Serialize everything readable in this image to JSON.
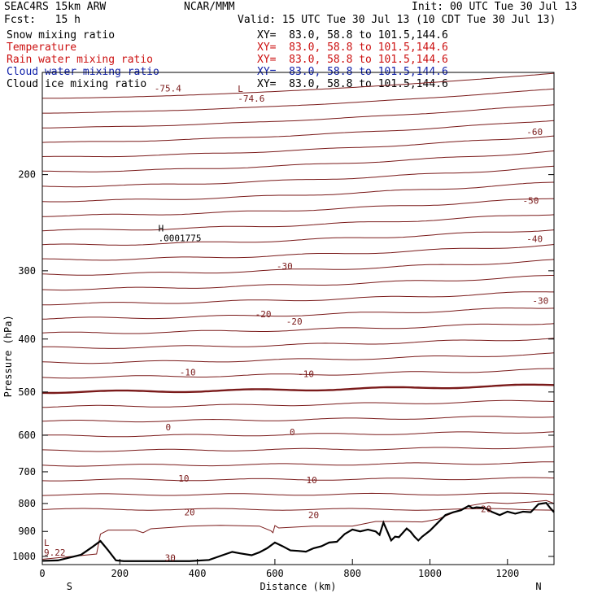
{
  "header": {
    "model": "SEAC4RS 15km ARW",
    "center": "NCAR/MMM",
    "init": "Init: 00 UTC Tue 30 Jul 13",
    "fcst": "Fcst:   15 h",
    "valid": "Valid: 15 UTC Tue 30 Jul 13 (10 CDT Tue 30 Jul 13)"
  },
  "fields": [
    {
      "name": "Snow mixing ratio",
      "xy": "XY=  83.0, 58.8 to 101.5,144.6",
      "color": "#000000"
    },
    {
      "name": "Temperature",
      "xy": "XY=  83.0, 58.8 to 101.5,144.6",
      "color": "#cc1111"
    },
    {
      "name": "Rain water mixing ratio",
      "xy": "XY=  83.0, 58.8 to 101.5,144.6",
      "color": "#cc1111"
    },
    {
      "name": "Cloud water mixing ratio",
      "xy": "XY=  83.0, 58.8 to 101.5,144.6",
      "color": "#1122aa"
    },
    {
      "name": "Cloud ice mixing ratio",
      "xy": "XY=  83.0, 58.8 to 101.5,144.6",
      "color": "#000000"
    }
  ],
  "chart_data": {
    "type": "line",
    "xlabel": "Distance (km)",
    "ylabel": "Pressure (hPa)",
    "xlim": [
      0,
      1320
    ],
    "ylim": [
      1035,
      130
    ],
    "x_ticks": [
      0,
      200,
      400,
      600,
      800,
      1000,
      1200
    ],
    "y_ticks": [
      200,
      300,
      400,
      500,
      600,
      700,
      800,
      900,
      1000
    ],
    "x_end_labels": {
      "left": "S",
      "right": "N"
    },
    "temperature_color": "#7a1a1a",
    "isotherm_interval": 2.5,
    "isotherm_labels": [
      {
        "value": "-60",
        "x": 1270,
        "p": 167
      },
      {
        "value": "-50",
        "x": 1260,
        "p": 223
      },
      {
        "value": "-40",
        "x": 1270,
        "p": 262
      },
      {
        "value": "-30",
        "x": 625,
        "p": 294
      },
      {
        "value": "-30",
        "x": 1285,
        "p": 340
      },
      {
        "value": "-20",
        "x": 570,
        "p": 360
      },
      {
        "value": "-20",
        "x": 650,
        "p": 371
      },
      {
        "value": "-10",
        "x": 375,
        "p": 460
      },
      {
        "value": "-10",
        "x": 680,
        "p": 463
      },
      {
        "value": "0",
        "x": 325,
        "p": 580
      },
      {
        "value": "0",
        "x": 645,
        "p": 592
      },
      {
        "value": "10",
        "x": 365,
        "p": 720
      },
      {
        "value": "10",
        "x": 695,
        "p": 725
      },
      {
        "value": "20",
        "x": 380,
        "p": 830
      },
      {
        "value": "20",
        "x": 700,
        "p": 840
      },
      {
        "value": "20",
        "x": 1145,
        "p": 818
      },
      {
        "value": "30",
        "x": 330,
        "p": 1006
      }
    ],
    "extrema": [
      {
        "label": "L",
        "value": "-74.6",
        "x": 500,
        "p": 146,
        "color": "#7a1a1a"
      },
      {
        "label": "",
        "value": "-75.4",
        "x": 285,
        "p": 140,
        "color": "#7a1a1a"
      },
      {
        "label": "H",
        "value": ".0001775",
        "x": 295,
        "p": 263,
        "color": "#000000"
      },
      {
        "label": "L",
        "value": "9.22",
        "x": 0,
        "p": 990,
        "color": "#7a1a1a"
      }
    ],
    "terrain": {
      "x": [
        0,
        40,
        70,
        100,
        130,
        150,
        170,
        190,
        210,
        260,
        320,
        380,
        430,
        470,
        490,
        510,
        540,
        560,
        580,
        600,
        620,
        640,
        660,
        680,
        700,
        720,
        740,
        760,
        780,
        800,
        820,
        840,
        860,
        870,
        880,
        890,
        900,
        910,
        920,
        940,
        950,
        960,
        970,
        980,
        1000,
        1020,
        1040,
        1060,
        1080,
        1100,
        1110,
        1120,
        1140,
        1160,
        1180,
        1200,
        1220,
        1240,
        1260,
        1280,
        1300,
        1310,
        1320
      ],
      "p": [
        1019,
        1017,
        1005,
        993,
        960,
        937,
        975,
        1017,
        1020,
        1020,
        1020,
        1020,
        1015,
        992,
        981,
        987,
        995,
        983,
        966,
        943,
        958,
        975,
        977,
        980,
        966,
        958,
        943,
        940,
        910,
        893,
        900,
        893,
        900,
        913,
        867,
        900,
        935,
        920,
        922,
        889,
        901,
        920,
        935,
        920,
        897,
        868,
        840,
        830,
        823,
        808,
        816,
        813,
        815,
        829,
        840,
        828,
        835,
        828,
        830,
        802,
        798,
        815,
        830
      ]
    },
    "cloud_top": {
      "x": [
        0,
        140,
        150,
        170,
        240,
        260,
        280,
        380,
        460,
        560,
        590,
        595,
        600,
        610,
        700,
        800,
        860,
        920,
        980,
        1020,
        1060,
        1100,
        1150,
        1200,
        1260,
        1300,
        1320
      ],
      "p": [
        1012,
        990,
        910,
        895,
        895,
        905,
        890,
        880,
        877,
        880,
        898,
        905,
        878,
        887,
        880,
        880,
        863,
        863,
        865,
        855,
        832,
        808,
        797,
        800,
        795,
        790,
        800
      ]
    }
  }
}
